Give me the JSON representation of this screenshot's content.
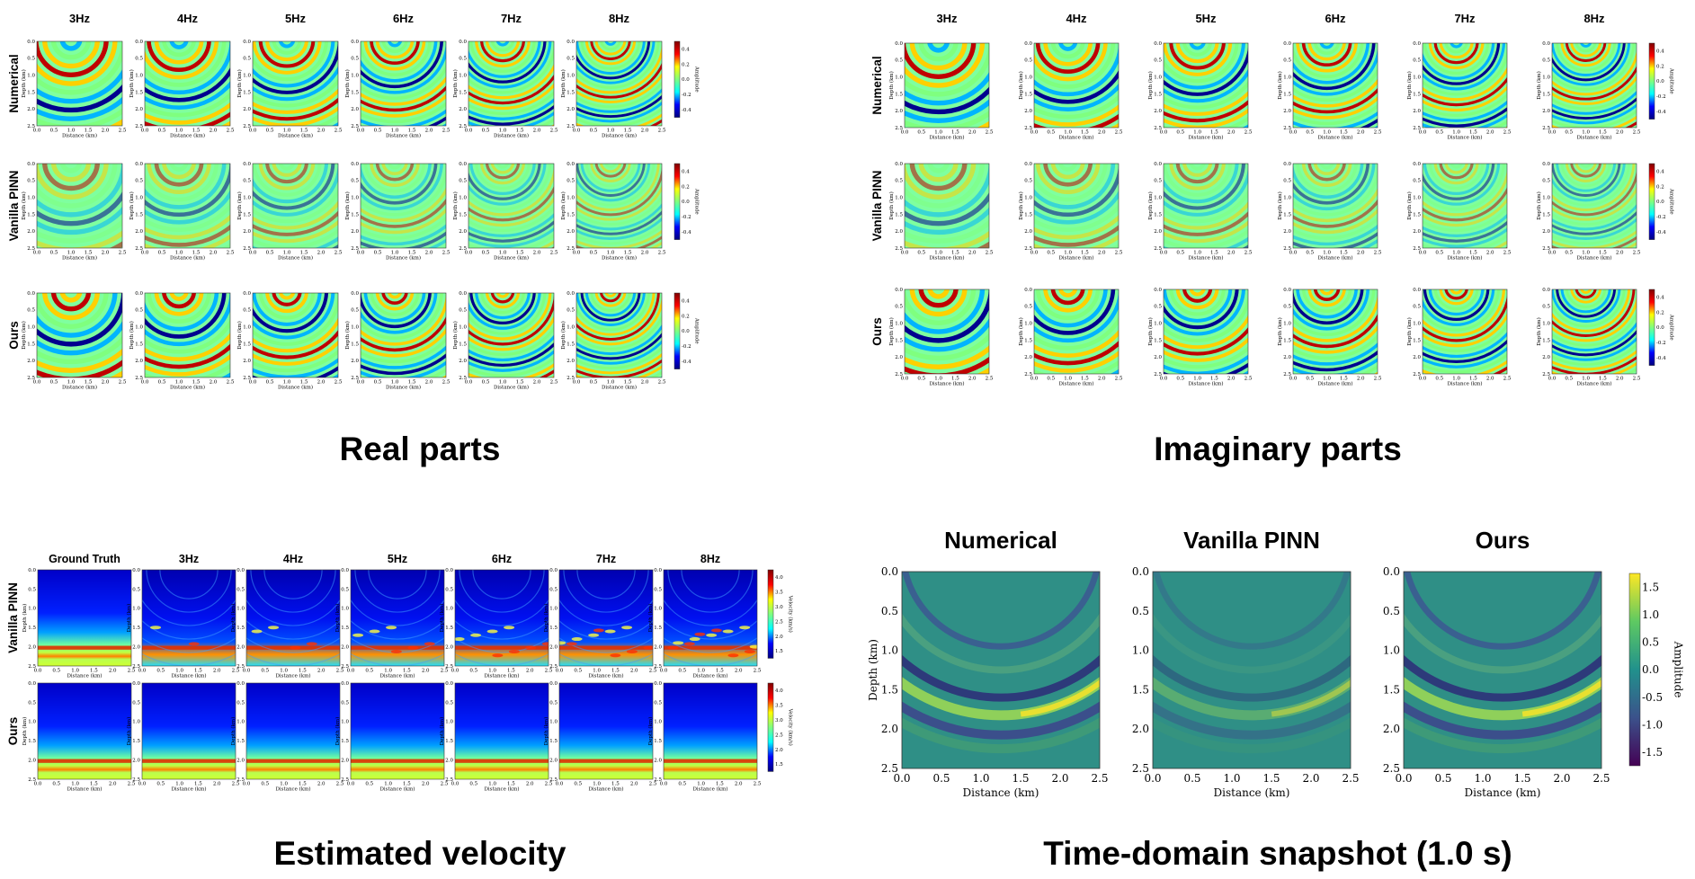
{
  "frequencies": [
    "3Hz",
    "4Hz",
    "5Hz",
    "6Hz",
    "7Hz",
    "8Hz"
  ],
  "wavefield_rows": [
    "Numerical",
    "Vanilla PINN",
    "Ours"
  ],
  "velocity_columns": [
    "Ground Truth",
    "3Hz",
    "4Hz",
    "5Hz",
    "6Hz",
    "7Hz",
    "8Hz"
  ],
  "velocity_rows": [
    "Vanilla PINN",
    "Ours"
  ],
  "snapshot_columns": [
    "Numerical",
    "Vanilla PINN",
    "Ours"
  ],
  "captions": {
    "real": "Real parts",
    "imag": "Imaginary parts",
    "velocity": "Estimated velocity",
    "snapshot": "Time-domain snapshot (1.0 s)"
  },
  "axes": {
    "xlabel": "Distance (km)",
    "ylabel": "Depth (km)",
    "ticks": [
      "0.0",
      "0.5",
      "1.0",
      "1.5",
      "2.0",
      "2.5"
    ]
  },
  "colorbars": {
    "amplitude": {
      "label": "Amplitude",
      "ticks": [
        "0.4",
        "0.2",
        "0.0",
        "-0.2",
        "-0.4"
      ]
    },
    "velocity": {
      "label": "Velocity (km/s)",
      "ticks": [
        "4.0",
        "3.5",
        "3.0",
        "2.5",
        "2.0",
        "1.5"
      ]
    },
    "snapshot": {
      "label": "Amplitude",
      "ticks": [
        "1.5",
        "1.0",
        "0.5",
        "0.0",
        "-0.5",
        "-1.0",
        "-1.5"
      ]
    }
  },
  "colors": {
    "jet": [
      "#00007f",
      "#0000ff",
      "#00ffff",
      "#7fff7f",
      "#ffff00",
      "#ff0000",
      "#7f0000"
    ],
    "viridis": [
      "#440154",
      "#3b528b",
      "#21918c",
      "#5ec962",
      "#fde725"
    ]
  }
}
